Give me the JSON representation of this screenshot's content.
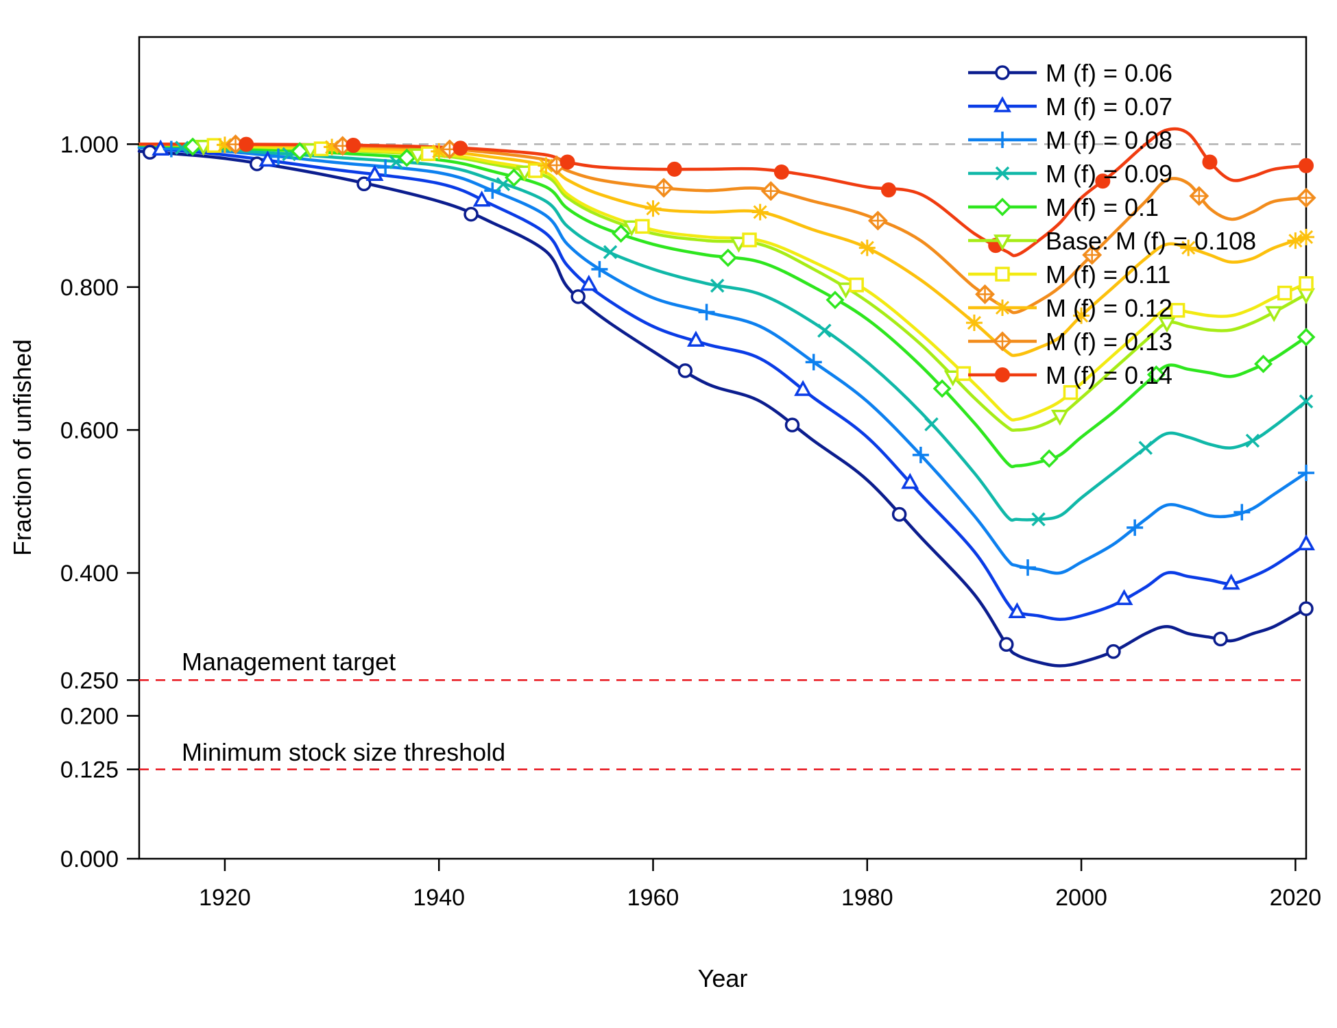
{
  "chart_data": {
    "type": "line",
    "xlabel": "Year",
    "ylabel": "Fraction of unfished",
    "xlim": [
      1912,
      2021
    ],
    "ylim": [
      0,
      1.15
    ],
    "x_ticks": [
      1920,
      1940,
      1960,
      1980,
      2000,
      2020
    ],
    "x_tick_labels": [
      "1920",
      "1940",
      "1960",
      "1980",
      "2000",
      "2020"
    ],
    "y_ticks": [
      0,
      0.125,
      0.2,
      0.25,
      0.4,
      0.6,
      0.8,
      1.0
    ],
    "y_tick_labels": [
      "0.000",
      "0.125",
      "0.200",
      "0.250",
      "0.400",
      "0.600",
      "0.800",
      "1.000"
    ],
    "grid": false,
    "legend_position": "top-right",
    "reference_lines": [
      {
        "y": 1.0,
        "color": "#b0b0b0",
        "style": "dashed"
      },
      {
        "y": 0.25,
        "color": "#e8141c",
        "style": "dashed",
        "label": "Management target"
      },
      {
        "y": 0.125,
        "color": "#e8141c",
        "style": "dashed",
        "label": "Minimum stock size threshold"
      }
    ],
    "x": [
      1912,
      1920,
      1930,
      1940,
      1945,
      1950,
      1952,
      1955,
      1960,
      1965,
      1970,
      1975,
      1980,
      1985,
      1990,
      1993,
      1994,
      1996,
      1998,
      2000,
      2003,
      2006,
      2008,
      2010,
      2012,
      2014,
      2016,
      2018,
      2021
    ],
    "series": [
      {
        "name": "M (f) = 0.06",
        "color": "#0b1d8e",
        "marker": "circle",
        "values": [
          0.99,
          0.98,
          0.955,
          0.92,
          0.89,
          0.85,
          0.8,
          0.76,
          0.71,
          0.665,
          0.64,
          0.585,
          0.53,
          0.45,
          0.37,
          0.3,
          0.285,
          0.275,
          0.27,
          0.275,
          0.29,
          0.315,
          0.325,
          0.315,
          0.31,
          0.305,
          0.315,
          0.325,
          0.35
        ]
      },
      {
        "name": "M (f) = 0.07",
        "color": "#0a3ce6",
        "marker": "triangle",
        "values": [
          0.995,
          0.985,
          0.965,
          0.945,
          0.915,
          0.875,
          0.83,
          0.79,
          0.745,
          0.72,
          0.7,
          0.645,
          0.59,
          0.51,
          0.43,
          0.36,
          0.345,
          0.34,
          0.335,
          0.34,
          0.355,
          0.38,
          0.4,
          0.395,
          0.39,
          0.385,
          0.395,
          0.41,
          0.44
        ]
      },
      {
        "name": "M (f) = 0.08",
        "color": "#0d80ef",
        "marker": "plus",
        "values": [
          0.995,
          0.99,
          0.975,
          0.96,
          0.935,
          0.9,
          0.86,
          0.825,
          0.785,
          0.765,
          0.745,
          0.695,
          0.64,
          0.565,
          0.48,
          0.42,
          0.41,
          0.405,
          0.4,
          0.415,
          0.44,
          0.475,
          0.495,
          0.49,
          0.48,
          0.48,
          0.49,
          0.51,
          0.54
        ]
      },
      {
        "name": "M (f) = 0.09",
        "color": "#10b8a8",
        "marker": "x",
        "values": [
          0.998,
          0.992,
          0.982,
          0.97,
          0.95,
          0.92,
          0.885,
          0.855,
          0.825,
          0.805,
          0.79,
          0.75,
          0.695,
          0.625,
          0.54,
          0.48,
          0.475,
          0.475,
          0.48,
          0.505,
          0.54,
          0.575,
          0.595,
          0.59,
          0.58,
          0.575,
          0.585,
          0.605,
          0.64
        ]
      },
      {
        "name": "M (f) = 0.1",
        "color": "#2ee61e",
        "marker": "diamond-open",
        "values": [
          0.999,
          0.995,
          0.988,
          0.978,
          0.962,
          0.94,
          0.91,
          0.885,
          0.86,
          0.845,
          0.835,
          0.8,
          0.755,
          0.69,
          0.61,
          0.555,
          0.55,
          0.555,
          0.565,
          0.59,
          0.625,
          0.665,
          0.69,
          0.685,
          0.68,
          0.675,
          0.685,
          0.7,
          0.73
        ]
      },
      {
        "name": "Base: M (f) = 0.108",
        "color": "#a6ec16",
        "marker": "triangle-down",
        "values": [
          1.0,
          0.997,
          0.992,
          0.984,
          0.972,
          0.955,
          0.925,
          0.9,
          0.875,
          0.865,
          0.86,
          0.825,
          0.78,
          0.72,
          0.645,
          0.605,
          0.6,
          0.605,
          0.62,
          0.645,
          0.685,
          0.725,
          0.75,
          0.745,
          0.74,
          0.74,
          0.75,
          0.765,
          0.79
        ]
      },
      {
        "name": "M (f) = 0.11",
        "color": "#f2ea12",
        "marker": "square",
        "values": [
          1.0,
          0.998,
          0.993,
          0.986,
          0.975,
          0.96,
          0.93,
          0.905,
          0.88,
          0.87,
          0.865,
          0.835,
          0.795,
          0.735,
          0.665,
          0.62,
          0.615,
          0.625,
          0.64,
          0.665,
          0.705,
          0.745,
          0.77,
          0.765,
          0.76,
          0.76,
          0.77,
          0.785,
          0.805
        ]
      },
      {
        "name": "M (f) = 0.12",
        "color": "#fcc00c",
        "marker": "asterisk",
        "values": [
          1.0,
          0.999,
          0.996,
          0.99,
          0.982,
          0.97,
          0.95,
          0.93,
          0.91,
          0.905,
          0.905,
          0.88,
          0.855,
          0.81,
          0.75,
          0.71,
          0.705,
          0.715,
          0.73,
          0.76,
          0.8,
          0.84,
          0.86,
          0.855,
          0.845,
          0.835,
          0.84,
          0.855,
          0.87
        ]
      },
      {
        "name": "M (f) = 0.13",
        "color": "#f28c1c",
        "marker": "diamond-dot",
        "values": [
          1.0,
          1.0,
          0.998,
          0.994,
          0.988,
          0.978,
          0.963,
          0.95,
          0.94,
          0.935,
          0.938,
          0.92,
          0.9,
          0.865,
          0.8,
          0.77,
          0.765,
          0.78,
          0.8,
          0.83,
          0.875,
          0.92,
          0.95,
          0.945,
          0.91,
          0.895,
          0.905,
          0.92,
          0.925
        ]
      },
      {
        "name": "M (f) = 0.14",
        "color": "#f03c10",
        "marker": "circle-filled",
        "values": [
          1.0,
          1.0,
          0.999,
          0.996,
          0.992,
          0.985,
          0.975,
          0.968,
          0.965,
          0.965,
          0.965,
          0.955,
          0.94,
          0.93,
          0.875,
          0.85,
          0.845,
          0.865,
          0.89,
          0.925,
          0.96,
          1.0,
          1.02,
          1.015,
          0.975,
          0.95,
          0.955,
          0.965,
          0.97
        ]
      }
    ]
  }
}
